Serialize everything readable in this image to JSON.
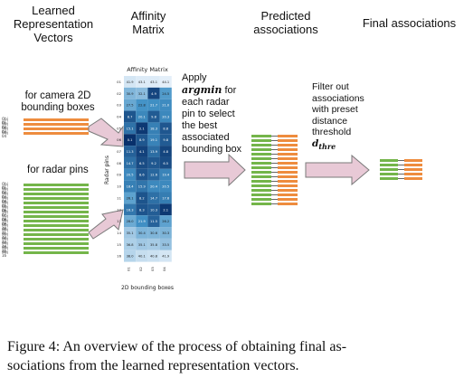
{
  "headers": {
    "col1": [
      "Learned",
      "Representation",
      "Vectors"
    ],
    "col2": [
      "Affinity",
      "Matrix"
    ],
    "col3": [
      "Predicted",
      "associations"
    ],
    "col4": "Final associations"
  },
  "labels": {
    "camera": [
      "for camera 2D",
      "bounding boxes"
    ],
    "radar": "for radar pins",
    "apply": {
      "l1": "Apply",
      "l2": "argmin",
      "l2_rest": " for",
      "l3": "each radar",
      "l4": "pin to select",
      "l5": "the best",
      "l6": "associated",
      "l7": "bounding box"
    },
    "filter": {
      "l1": "Filter out",
      "l2": "associations",
      "l3": "with preset",
      "l4": "distance",
      "l5": "threshold",
      "sym": "d",
      "sub": "thre"
    }
  },
  "camera_objects": [
    "Obj 01",
    "Obj 02",
    "Obj 03",
    "Obj 04"
  ],
  "radar_objects": [
    "Obj 01",
    "Obj 02",
    "Obj 03",
    "Obj 04",
    "Obj 05",
    "Obj 06",
    "Obj 07",
    "Obj 08",
    "Obj 09",
    "Obj 10",
    "Obj 11",
    "Obj 12",
    "Obj 13",
    "Obj 14",
    "Obj 15",
    "Obj 16"
  ],
  "matrix": {
    "title": "Affinity Matrix",
    "xlabel": "2D bounding boxes",
    "ylabel": "Radar pins",
    "x_ticks": [
      "01",
      "02",
      "03",
      "04"
    ],
    "y_ticks": [
      "01",
      "02",
      "03",
      "04",
      "05",
      "06",
      "07",
      "08",
      "09",
      "10",
      "11",
      "12",
      "13",
      "14",
      "15",
      "16"
    ],
    "values": [
      [
        41.9,
        43.1,
        43.1,
        44.1
      ],
      [
        30.9,
        32.1,
        4.9,
        24.5
      ],
      [
        27.5,
        22.8,
        21.7,
        21.0
      ],
      [
        8.7,
        20.1,
        9.8,
        20.3
      ],
      [
        15.1,
        2.1,
        18.3,
        8.8
      ],
      [
        0.1,
        8.9,
        19.1,
        9.8
      ],
      [
        11.3,
        4.1,
        13.9,
        4.8
      ],
      [
        14.7,
        6.5,
        9.2,
        6.5
      ],
      [
        20.5,
        8.6,
        12.6,
        19.4
      ],
      [
        18.4,
        15.9,
        20.4,
        20.5
      ],
      [
        26.1,
        8.2,
        14.7,
        17.6
      ],
      [
        16.3,
        8.3,
        10.3,
        2.1
      ],
      [
        28.0,
        21.9,
        11.5,
        26.2
      ],
      [
        35.1,
        30.4,
        30.6,
        30.3
      ],
      [
        36.8,
        35.1,
        35.8,
        33.5
      ],
      [
        38.0,
        40.1,
        40.8,
        41.9
      ]
    ],
    "vmax": 45
  },
  "caption": {
    "line1": "Figure 4: An overview of the process of obtaining final as-",
    "line2": "sociations from the learned representation vectors."
  },
  "colors": {
    "green": "#74b54a",
    "orange": "#ee8c3e",
    "arrow_fill": "#e8c9d6",
    "arrow_stroke": "#7a7a7a"
  },
  "predicted_pairs": 16,
  "final_pairs": 5
}
